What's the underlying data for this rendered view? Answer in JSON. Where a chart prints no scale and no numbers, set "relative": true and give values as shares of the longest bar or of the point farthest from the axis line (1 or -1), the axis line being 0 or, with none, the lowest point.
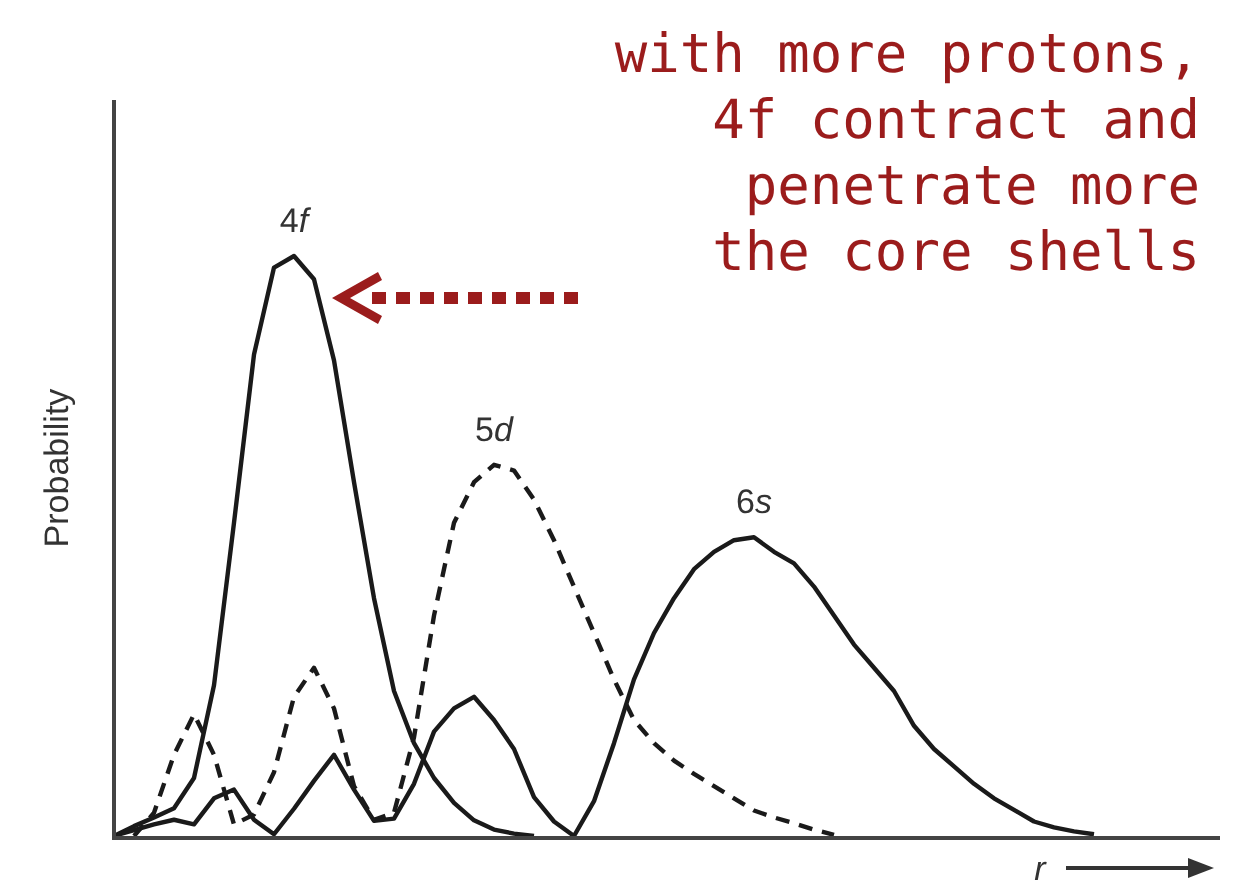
{
  "chart_data": {
    "type": "line",
    "relative": true,
    "xlabel": "r",
    "ylabel": "Probability",
    "marker": "none",
    "categories": [
      null,
      null,
      null,
      null,
      null,
      null,
      null,
      null,
      null,
      null,
      null,
      null,
      null,
      null,
      null,
      null,
      null,
      null,
      null,
      null,
      null,
      null,
      null,
      null,
      null,
      null,
      null,
      null,
      null,
      null,
      null,
      null,
      null,
      null,
      null,
      null,
      null,
      null,
      null,
      null,
      null,
      null,
      null,
      null,
      null,
      null,
      null,
      null,
      null,
      null
    ],
    "annotations": [
      "with more protons,\n4f contract and\npenetrate more\nthe core shells"
    ],
    "series": [
      {
        "name": "4f",
        "color": "#1a1a1a",
        "line_style": "solid",
        "values": [
          0,
          0.017,
          0.032,
          0.048,
          0.1,
          0.26,
          0.54,
          0.83,
          0.98,
          1,
          0.96,
          0.82,
          0.61,
          0.41,
          0.25,
          0.16,
          0.1,
          0.057,
          0.027,
          0.011,
          0.004,
          0,
          null,
          null,
          null,
          null,
          null,
          null,
          null,
          null,
          null,
          null,
          null,
          null,
          null,
          null,
          null,
          null,
          null,
          null,
          null,
          null,
          null,
          null,
          null,
          null,
          null,
          null,
          null,
          null
        ]
      },
      {
        "name": "5d",
        "color": "#1a1a1a",
        "line_style": "dashed",
        "values": [
          null,
          0,
          0.04,
          0.14,
          0.21,
          0.14,
          0.02,
          0.037,
          0.11,
          0.24,
          0.29,
          0.22,
          0.086,
          0.028,
          0.04,
          0.17,
          0.38,
          0.54,
          0.61,
          0.64,
          0.63,
          0.58,
          0.51,
          0.43,
          0.35,
          0.27,
          0.2,
          0.16,
          0.13,
          0.107,
          0.086,
          0.065,
          0.044,
          0.032,
          0.022,
          0.011,
          0.002,
          null,
          null,
          null,
          null,
          null,
          null,
          null,
          null,
          null,
          null,
          null,
          null,
          null
        ]
      },
      {
        "name": "6s",
        "color": "#1a1a1a",
        "line_style": "solid",
        "values": [
          0,
          0.01,
          0.02,
          0.028,
          0.02,
          0.065,
          0.08,
          0.028,
          0.003,
          0.047,
          0.095,
          0.14,
          0.08,
          0.026,
          0.03,
          0.09,
          0.18,
          0.22,
          0.24,
          0.2,
          0.15,
          0.067,
          0.025,
          0,
          0.06,
          0.16,
          0.27,
          0.35,
          0.41,
          0.46,
          0.49,
          0.51,
          0.515,
          0.49,
          0.47,
          0.43,
          0.38,
          0.33,
          0.29,
          0.25,
          0.19,
          0.15,
          0.12,
          0.09,
          0.065,
          0.045,
          0.025,
          0.015,
          0.008,
          0.003
        ]
      }
    ]
  }
}
